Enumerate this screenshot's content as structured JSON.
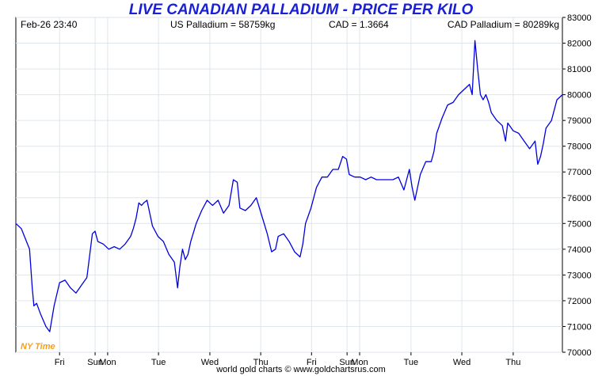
{
  "header": {
    "timestamp": "Feb-26  23:40",
    "us_price": "US Palladium = 58759kg",
    "fx_rate": "CAD = 1.3664",
    "cad_price": "CAD Palladium = 80289kg"
  },
  "timezone_label": "NY Time",
  "credit": "world gold charts © www.goldchartsrus.com",
  "colors": {
    "line": "#0000e0",
    "title": "#1a20d6",
    "timezone": "#f0a020",
    "grid": "#dde6ec"
  },
  "chart_data": {
    "type": "line",
    "title": "LIVE CANADIAN PALLADIUM - PRICE PER KILO",
    "ylim": [
      70000,
      83000
    ],
    "yticks": [
      70000,
      71000,
      72000,
      73000,
      74000,
      75000,
      76000,
      77000,
      78000,
      79000,
      80000,
      81000,
      82000,
      83000
    ],
    "xlim": [
      0,
      100
    ],
    "xticks": [
      {
        "label": "Fri",
        "x": 8.0
      },
      {
        "label": "Sun",
        "x": 14.5
      },
      {
        "label": "Mon",
        "x": 16.8
      },
      {
        "label": "Tue",
        "x": 26.1
      },
      {
        "label": "Wed",
        "x": 35.5
      },
      {
        "label": "Thu",
        "x": 44.8
      },
      {
        "label": "Fri",
        "x": 54.1
      },
      {
        "label": "Sun",
        "x": 60.6
      },
      {
        "label": "Mon",
        "x": 62.9
      },
      {
        "label": "Tue",
        "x": 72.3
      },
      {
        "label": "Wed",
        "x": 81.6
      },
      {
        "label": "Thu",
        "x": 91.0
      }
    ],
    "grid": true,
    "series": [
      {
        "x": [
          0,
          1,
          2.5,
          3,
          3.3,
          3.8,
          4.5,
          5.5,
          6.2,
          7,
          8,
          9,
          10,
          11,
          12,
          13,
          14,
          14.5,
          15,
          16,
          17,
          18,
          19,
          20,
          21,
          21.5,
          22,
          22.5,
          23,
          23.4,
          24,
          25,
          26,
          27,
          28,
          29,
          29.6,
          30,
          30.5,
          31,
          31.5,
          32,
          33,
          34,
          35,
          35.5,
          36,
          37,
          38,
          39,
          39.8,
          40.5,
          41,
          42,
          43,
          44,
          45,
          46,
          46.8,
          47.5,
          48,
          49,
          50,
          51,
          52,
          52.5,
          53,
          53.5,
          54,
          55,
          56,
          57,
          58,
          59,
          59.8,
          60.5,
          61,
          62,
          63,
          64,
          65,
          66,
          67,
          68,
          69,
          70,
          71,
          72,
          72.5,
          73,
          74,
          75,
          76,
          76.5,
          77,
          78,
          79,
          80,
          81,
          82,
          83,
          83.5,
          84,
          84.5,
          85,
          85.5,
          86,
          86.5,
          87,
          88,
          89,
          89.6,
          90,
          91,
          92,
          93,
          94,
          95,
          95.5,
          96,
          96.5,
          97,
          98,
          99,
          100
        ],
        "values": [
          75000,
          74800,
          74000,
          72500,
          71800,
          71900,
          71500,
          71000,
          70800,
          71800,
          72700,
          72800,
          72500,
          72300,
          72600,
          72900,
          74600,
          74700,
          74300,
          74200,
          74000,
          74100,
          74000,
          74200,
          74500,
          74800,
          75200,
          75800,
          75700,
          75800,
          75900,
          74900,
          74500,
          74300,
          73800,
          73500,
          72500,
          73300,
          74000,
          73600,
          73800,
          74300,
          75000,
          75500,
          75900,
          75800,
          75700,
          75900,
          75400,
          75700,
          76700,
          76600,
          75600,
          75500,
          75700,
          76000,
          75300,
          74600,
          73900,
          74000,
          74500,
          74600,
          74300,
          73900,
          73700,
          74200,
          75000,
          75300,
          75600,
          76400,
          76800,
          76800,
          77100,
          77100,
          77600,
          77500,
          76900,
          76800,
          76800,
          76700,
          76800,
          76700,
          76700,
          76700,
          76700,
          76800,
          76300,
          77100,
          76400,
          75900,
          76900,
          77400,
          77400,
          77800,
          78500,
          79100,
          79600,
          79700,
          80000,
          80200,
          80400,
          80000,
          82100,
          81000,
          80000,
          79800,
          80000,
          79700,
          79300,
          79000,
          78800,
          78200,
          78900,
          78600,
          78500,
          78200,
          77900,
          78200,
          77300,
          77600,
          78100,
          78700,
          79000,
          79800,
          80000
        ]
      }
    ]
  }
}
